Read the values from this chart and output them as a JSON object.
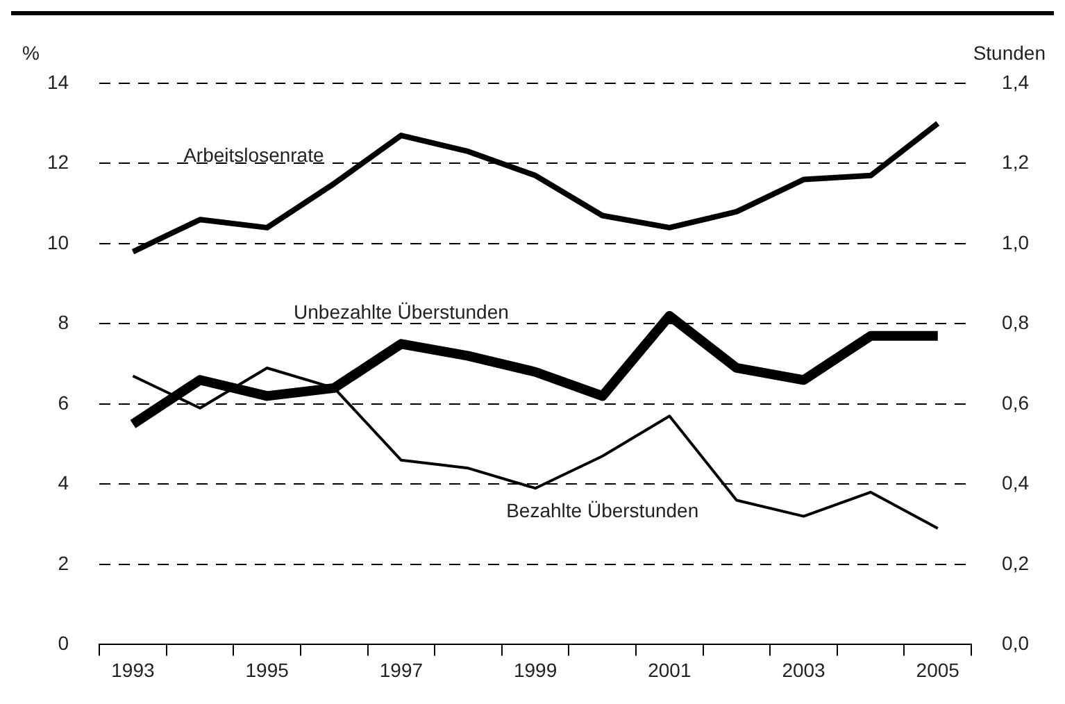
{
  "chart_data": {
    "type": "line",
    "ylabel": "%",
    "y2label": "Stunden",
    "categories": [
      "1993",
      null,
      "1995",
      null,
      "1997",
      null,
      "1999",
      null,
      "2001",
      null,
      "2003",
      null,
      "2005"
    ],
    "series": [
      {
        "name": "Arbeitslosenrate",
        "color": "#000000",
        "values": [
          9.8,
          10.6,
          10.4,
          11.5,
          12.7,
          12.3,
          11.7,
          10.7,
          10.4,
          10.8,
          11.6,
          11.7,
          13.0
        ]
      },
      {
        "name": "Unbezahlte Überstunden",
        "color": "#000000",
        "axis": "y2",
        "values": [
          0.55,
          0.66,
          0.62,
          0.64,
          0.75,
          0.72,
          0.68,
          0.62,
          0.82,
          0.69,
          0.66,
          0.77,
          0.77
        ]
      },
      {
        "name": "Bezahlte Überstunden",
        "color": "#000000",
        "axis": "y2",
        "values": [
          0.67,
          0.59,
          0.69,
          0.64,
          0.46,
          0.44,
          0.39,
          0.47,
          0.57,
          0.36,
          0.32,
          0.38,
          0.29
        ]
      }
    ],
    "ylim": [
      0,
      14
    ],
    "yticks": [
      0,
      2,
      4,
      6,
      8,
      10,
      12,
      14
    ],
    "y2lim": [
      0,
      1.4
    ],
    "y2ticks": [
      {
        "value": 0,
        "label": "0,0"
      },
      {
        "value": 0.2,
        "label": "0,2"
      },
      {
        "value": 0.4,
        "label": "0,4"
      },
      {
        "value": 0.6,
        "label": "0,6"
      },
      {
        "value": 0.8,
        "label": "0,8"
      },
      {
        "value": 1.0,
        "label": "1,0"
      },
      {
        "value": 1.2,
        "label": "1,2"
      },
      {
        "value": 1.4,
        "label": "1,4"
      }
    ],
    "grid": "y",
    "legend": false,
    "marker": "none",
    "line_style": "solid"
  }
}
